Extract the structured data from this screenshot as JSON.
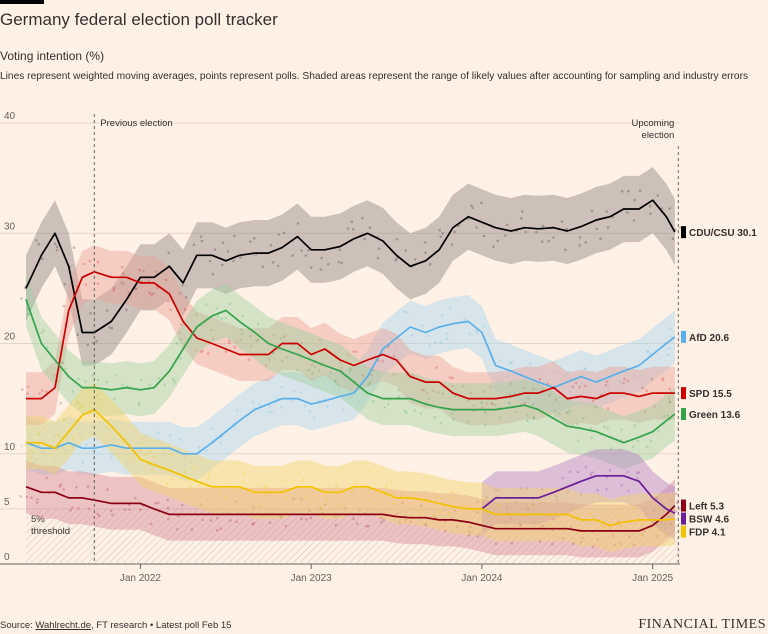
{
  "header": {
    "title": "Germany federal election poll tracker",
    "subtitle": "Voting intention (%)",
    "description": "Lines represent weighted moving averages, points represent polls. Shaded areas represent the range of likely values after accounting for sampling and industry errors"
  },
  "footer": {
    "source_link": "Wahlrecht.de",
    "source_rest": ", FT research • Latest poll Feb 15",
    "brand": "FINANCIAL TIMES"
  },
  "chart_data": {
    "type": "line",
    "title": "Germany federal election poll tracker",
    "ylabel": "Voting intention (%)",
    "ylim": [
      0,
      40
    ],
    "yticks": [
      "0",
      "5",
      "10",
      "20",
      "30",
      "40"
    ],
    "xlim": [
      2021.33,
      2025.16
    ],
    "xticks": [
      {
        "label": "Jan 2022",
        "value": 2022.0
      },
      {
        "label": "Jan 2023",
        "value": 2023.0
      },
      {
        "label": "Jan 2024",
        "value": 2024.0
      },
      {
        "label": "Jan 2025",
        "value": 2025.0
      }
    ],
    "annotations": {
      "previous_election": {
        "label": "Previous election",
        "x": 2021.73
      },
      "upcoming_election": {
        "label1": "Upcoming",
        "label2": "election",
        "x": 2025.15
      },
      "threshold": {
        "label1": "5%",
        "label2": "threshold",
        "value": 5
      }
    },
    "x": [
      2021.33,
      2021.42,
      2021.5,
      2021.58,
      2021.66,
      2021.73,
      2021.83,
      2021.92,
      2022.0,
      2022.08,
      2022.17,
      2022.25,
      2022.33,
      2022.42,
      2022.5,
      2022.58,
      2022.67,
      2022.75,
      2022.83,
      2022.92,
      2023.0,
      2023.08,
      2023.17,
      2023.25,
      2023.33,
      2023.42,
      2023.5,
      2023.58,
      2023.67,
      2023.75,
      2023.83,
      2023.92,
      2024.0,
      2024.08,
      2024.17,
      2024.25,
      2024.33,
      2024.42,
      2024.5,
      2024.58,
      2024.67,
      2024.75,
      2024.83,
      2024.92,
      2025.0,
      2025.08,
      2025.13
    ],
    "series": [
      {
        "name": "CDU/CSU",
        "end_label": "CDU/CSU 30.1",
        "color": "#000000",
        "band": "#8f8580",
        "values": [
          25,
          28,
          30,
          27,
          21,
          21,
          22,
          24,
          26,
          26,
          27,
          25.5,
          28,
          28,
          27.5,
          28,
          28.2,
          28.2,
          28.7,
          29.7,
          28.5,
          28.5,
          28.8,
          29.5,
          30,
          29.3,
          28,
          27,
          27.5,
          28.5,
          30.5,
          31.5,
          31,
          30.5,
          30.2,
          30.5,
          30.4,
          30.5,
          30.2,
          30.6,
          31.2,
          31.5,
          32.2,
          32.2,
          33,
          31.5,
          30.1
        ]
      },
      {
        "name": "AfD",
        "end_label": "AfD 20.6",
        "color": "#5ab0ea",
        "band": "#a7d4f0",
        "values": [
          11,
          10.5,
          10.5,
          11,
          10.5,
          10.5,
          10.8,
          10.5,
          10.5,
          10.5,
          10.5,
          10,
          10,
          11,
          12,
          13,
          14,
          14.5,
          15,
          15,
          14.5,
          14.8,
          15.2,
          15.5,
          17,
          19.5,
          20.5,
          21.5,
          21,
          21.5,
          21.8,
          22,
          21,
          18,
          17.5,
          17,
          16.5,
          16,
          16.5,
          17,
          16.5,
          17,
          17.5,
          18,
          19,
          20,
          20.6
        ]
      },
      {
        "name": "SPD",
        "end_label": "SPD 15.5",
        "color": "#cc0000",
        "band": "#e8a296",
        "values": [
          15,
          15,
          16,
          23,
          26,
          26.5,
          26,
          26,
          25.5,
          25.5,
          24.5,
          22,
          20.5,
          20,
          19.5,
          19,
          19,
          19,
          20,
          20,
          19,
          19.5,
          18.5,
          18,
          18.5,
          19,
          18.5,
          17,
          16.5,
          16.5,
          15.5,
          15,
          15,
          15,
          15.2,
          15.5,
          15.5,
          16,
          15,
          15.2,
          15,
          15.5,
          15.5,
          15.2,
          15.5,
          15.5,
          15.5
        ]
      },
      {
        "name": "Green",
        "end_label": "Green 13.6",
        "color": "#33a44b",
        "band": "#9fd1a0",
        "values": [
          24,
          20,
          18.5,
          17,
          16,
          16,
          15.8,
          16,
          15.8,
          16,
          17.5,
          19.5,
          21.5,
          22.5,
          23,
          22,
          21,
          20,
          19.5,
          19,
          18.5,
          18,
          17.5,
          16.5,
          15.5,
          15,
          15,
          15,
          14.5,
          14.2,
          14,
          14,
          14,
          14,
          14.2,
          14.4,
          14,
          13.2,
          12.5,
          12.3,
          12,
          11.5,
          11,
          11.5,
          12,
          13,
          13.6
        ]
      },
      {
        "name": "Left",
        "end_label": "Left 5.3",
        "color": "#8b0015",
        "band": "#d7899a",
        "values": [
          7,
          6.5,
          6.5,
          6,
          6,
          5.8,
          5.5,
          5.5,
          5.5,
          5,
          4.5,
          4.5,
          4.5,
          4.5,
          4.5,
          4.5,
          4.5,
          4.5,
          4.5,
          4.5,
          4.5,
          4.5,
          4.5,
          4.5,
          4.5,
          4.5,
          4.3,
          4.2,
          4.2,
          4,
          4,
          3.8,
          3.5,
          3.2,
          3.2,
          3.2,
          3.2,
          3.2,
          3.2,
          3,
          3,
          3,
          3,
          3,
          3.5,
          4.5,
          5.3
        ]
      },
      {
        "name": "BSW",
        "end_label": "BSW 4.6",
        "color": "#6a1f99",
        "band": "#b380c6",
        "values": [
          null,
          null,
          null,
          null,
          null,
          null,
          null,
          null,
          null,
          null,
          null,
          null,
          null,
          null,
          null,
          null,
          null,
          null,
          null,
          null,
          null,
          null,
          null,
          null,
          null,
          null,
          null,
          null,
          null,
          null,
          null,
          null,
          5,
          6,
          6,
          6,
          6,
          6.5,
          7,
          7.5,
          8,
          8,
          8,
          7.5,
          6,
          5,
          4.6
        ]
      },
      {
        "name": "FDP",
        "end_label": "FDP 4.1",
        "color": "#f2c200",
        "band": "#f4d46a",
        "values": [
          11,
          11,
          10.5,
          12,
          13.5,
          14,
          12.5,
          11,
          9.5,
          9,
          8.5,
          8,
          7.5,
          7,
          7,
          7,
          6.5,
          6.5,
          6.5,
          7,
          7,
          6.5,
          6.5,
          7,
          7,
          6.5,
          6,
          6,
          5.8,
          5.5,
          5.2,
          5,
          5,
          4.5,
          4.5,
          4.5,
          4.5,
          4.5,
          4.5,
          4,
          4,
          3.5,
          3.8,
          4,
          4,
          4,
          4.1
        ]
      }
    ]
  }
}
